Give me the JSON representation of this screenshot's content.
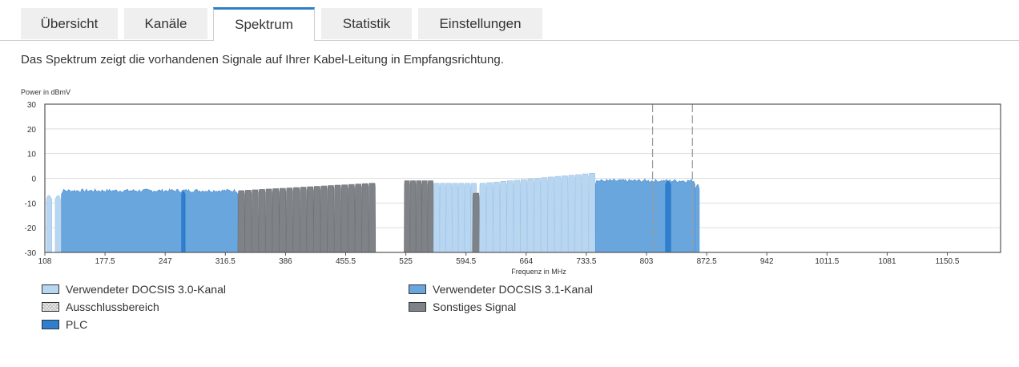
{
  "tabs": [
    {
      "label": "Übersicht"
    },
    {
      "label": "Kanäle"
    },
    {
      "label": "Spektrum",
      "active": true
    },
    {
      "label": "Statistik"
    },
    {
      "label": "Einstellungen"
    }
  ],
  "description": "Das Spektrum zeigt die vorhandenen Signale auf Ihrer Kabel-Leitung in Empfangsrichtung.",
  "legend": {
    "docsis30": "Verwendeter DOCSIS 3.0-Kanal",
    "docsis31": "Verwendeter DOCSIS 3.1-Kanal",
    "exclusion": "Ausschlussbereich",
    "other": "Sonstiges Signal",
    "plc": "PLC"
  },
  "colors": {
    "docsis30": "#b9d6f0",
    "docsis31": "#6aa6de",
    "plc": "#2e7fcf",
    "other": "#7f8286",
    "active_tab_accent": "#2d7fc6"
  },
  "chart_data": {
    "type": "area",
    "ylabel": "Power in dBmV",
    "xlabel": "Frequenz in MHz",
    "xlim": [
      108,
      1212
    ],
    "ylim": [
      -30,
      30
    ],
    "x_ticks": [
      108,
      177.5,
      247,
      316.5,
      386,
      455.5,
      525,
      594.5,
      664,
      733.5,
      803,
      872.5,
      942,
      1011.5,
      1081,
      1150.5
    ],
    "y_ticks": [
      30,
      20,
      10,
      0,
      -10,
      -20,
      -30
    ],
    "grid": true,
    "bands": [
      {
        "category": "docsis30",
        "from": 110,
        "to": 116,
        "level": -7
      },
      {
        "category": "docsis30",
        "from": 120,
        "to": 126,
        "level": -7
      },
      {
        "category": "docsis31",
        "from": 127,
        "to": 331,
        "level": -5
      },
      {
        "category": "docsis31_plc",
        "from": 266,
        "to": 270,
        "level": -5
      },
      {
        "category": "other",
        "from": 331,
        "to": 490,
        "channels": 20,
        "level_start": -5,
        "level_end": -2
      },
      {
        "category": "other",
        "from": 523,
        "to": 557,
        "channels": 5,
        "level_start": -1,
        "level_end": -1
      },
      {
        "category": "docsis30",
        "from": 557,
        "to": 607,
        "channels": 7,
        "level_start": -2,
        "level_end": -2
      },
      {
        "category": "other",
        "from": 602,
        "to": 610,
        "channels": 1,
        "level_start": -6,
        "level_end": -6
      },
      {
        "category": "docsis30",
        "from": 610,
        "to": 744,
        "channels": 17,
        "level_start": -2,
        "level_end": 2
      },
      {
        "category": "docsis31",
        "from": 744,
        "to": 859,
        "level": -1
      },
      {
        "category": "docsis31_plc",
        "from": 825,
        "to": 831,
        "level": -1
      },
      {
        "category": "docsis31",
        "from": 859,
        "to": 864,
        "level": -3
      }
    ],
    "exclusion_lines": [
      810,
      856
    ]
  }
}
